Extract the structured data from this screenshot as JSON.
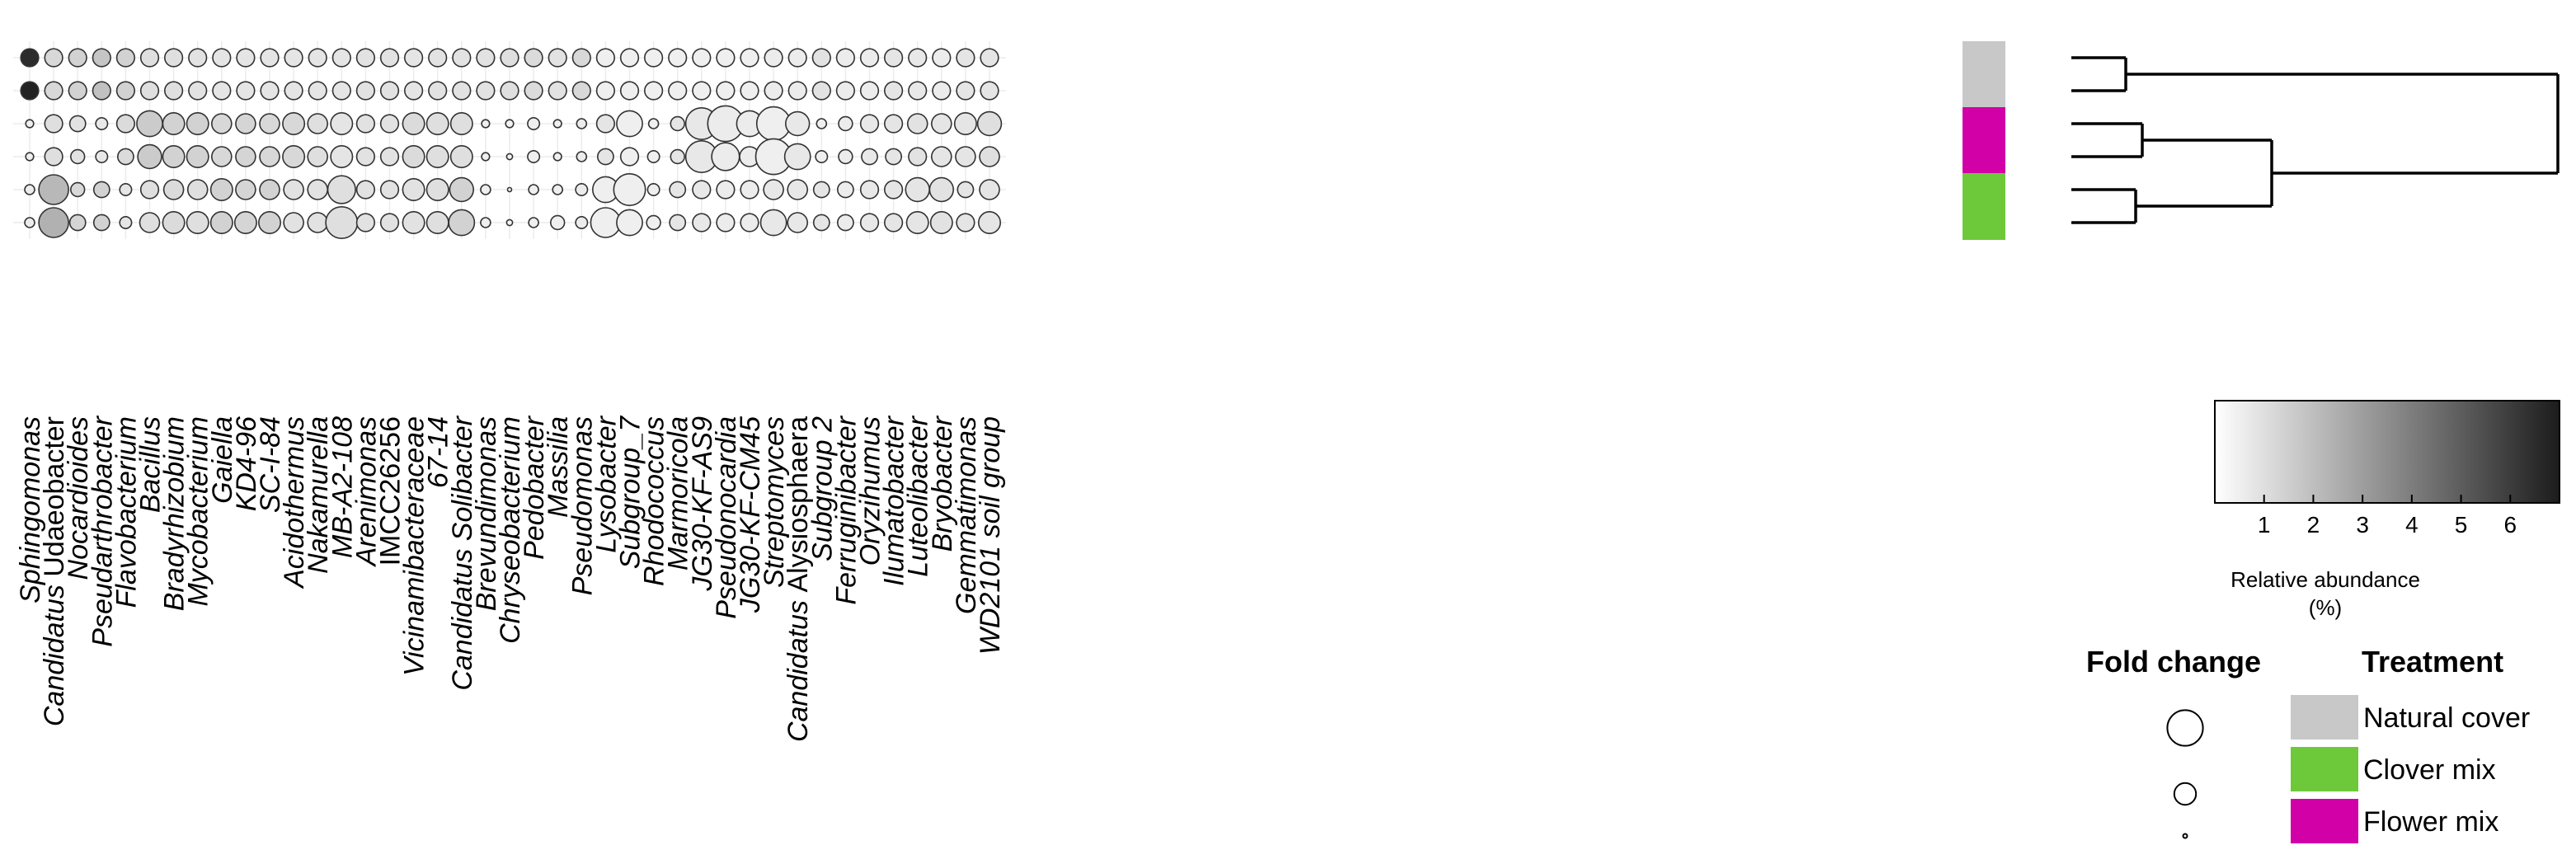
{
  "chart_data": {
    "type": "bubble-heatmap",
    "taxa": [
      {
        "name": "Sphingomonas",
        "italic": true
      },
      {
        "prefix": "Candidatus",
        "name": "Udaeobacter",
        "italic": false
      },
      {
        "name": "Nocardioides",
        "italic": true
      },
      {
        "name": "Pseudarthrobacter",
        "italic": true
      },
      {
        "name": "Flavobacterium",
        "italic": true
      },
      {
        "name": "Bacillus",
        "italic": true
      },
      {
        "name": "Bradyrhizobium",
        "italic": true
      },
      {
        "name": "Mycobacterium",
        "italic": true
      },
      {
        "name": "Gaiella",
        "italic": true
      },
      {
        "name": "KD4-96",
        "italic": true
      },
      {
        "name": "SC-I-84",
        "italic": true
      },
      {
        "name": "Acidothermus",
        "italic": true
      },
      {
        "name": "Nakamurella",
        "italic": true
      },
      {
        "name": "MB-A2-108",
        "italic": true
      },
      {
        "name": "Arenimonas",
        "italic": true
      },
      {
        "name": "IMCC26256",
        "italic": false
      },
      {
        "name": "Vicinamibacteraceae",
        "italic": true
      },
      {
        "name": "67-14",
        "italic": true
      },
      {
        "name": "Candidatus Solibacter",
        "italic": true
      },
      {
        "name": "Brevundimonas",
        "italic": true
      },
      {
        "name": "Chryseobacterium",
        "italic": true
      },
      {
        "name": "Pedobacter",
        "italic": true
      },
      {
        "name": "Massilia",
        "italic": true
      },
      {
        "name": "Pseudomonas",
        "italic": true
      },
      {
        "name": "Lysobacter",
        "italic": true
      },
      {
        "name": "Subgroup_7",
        "italic": true
      },
      {
        "name": "Rhodococcus",
        "italic": true
      },
      {
        "name": "Marmoricola",
        "italic": true
      },
      {
        "name": "JG30-KF-AS9",
        "italic": true
      },
      {
        "name": "Pseudonocardia",
        "italic": true
      },
      {
        "name": "JG30-KF-CM45",
        "italic": true
      },
      {
        "name": "Streptomyces",
        "italic": true
      },
      {
        "prefix": "Candidatus",
        "name": "Alysiosphaera",
        "italic": false
      },
      {
        "name": "Subgroup 2",
        "italic": true
      },
      {
        "name": "Ferruginibacter",
        "italic": true
      },
      {
        "name": "Oryzihumus",
        "italic": true
      },
      {
        "name": "Ilumatobacter",
        "italic": true
      },
      {
        "name": "Luteolibacter",
        "italic": true
      },
      {
        "name": "Bryobacter",
        "italic": true
      },
      {
        "name": "Gemmatimonas",
        "italic": true
      },
      {
        "name": "WD2101 soil group",
        "italic": true
      }
    ],
    "samples": [
      {
        "treatment": "Natural cover"
      },
      {
        "treatment": "Natural cover"
      },
      {
        "treatment": "Flower mix"
      },
      {
        "treatment": "Flower mix"
      },
      {
        "treatment": "Clover mix"
      },
      {
        "treatment": "Clover mix"
      }
    ],
    "fold_change": [
      [
        0.9,
        0.9,
        0.9,
        0.9,
        0.9,
        0.9,
        0.9,
        0.9,
        0.9,
        0.9,
        0.9,
        0.9,
        0.9,
        0.9,
        0.9,
        0.9,
        0.9,
        0.9,
        0.9,
        0.9,
        0.9,
        0.9,
        0.9,
        0.9,
        0.9,
        0.9,
        0.9,
        0.9,
        0.9,
        0.9,
        0.9,
        0.9,
        0.9,
        0.9,
        0.9,
        0.9,
        0.9,
        0.9,
        0.9,
        0.9,
        0.9
      ],
      [
        0.9,
        0.9,
        0.9,
        0.9,
        0.9,
        0.9,
        0.9,
        0.9,
        0.9,
        0.9,
        0.9,
        0.9,
        0.9,
        0.9,
        0.9,
        0.9,
        0.9,
        0.9,
        0.9,
        0.9,
        0.9,
        0.9,
        0.9,
        0.9,
        0.9,
        0.9,
        0.9,
        0.9,
        0.9,
        0.9,
        0.9,
        0.9,
        0.9,
        0.9,
        0.9,
        0.9,
        0.9,
        0.9,
        0.9,
        0.9,
        0.9
      ],
      [
        0.4,
        0.9,
        0.8,
        0.6,
        0.9,
        1.3,
        1.1,
        1.1,
        1.0,
        1.0,
        1.0,
        1.1,
        1.0,
        1.1,
        0.9,
        0.9,
        1.1,
        1.1,
        1.1,
        0.4,
        0.4,
        0.6,
        0.4,
        0.5,
        0.9,
        1.3,
        0.5,
        0.7,
        1.6,
        1.8,
        1.3,
        1.7,
        1.2,
        0.5,
        0.7,
        0.9,
        0.9,
        1.0,
        1.0,
        1.1,
        1.2
      ],
      [
        0.4,
        0.9,
        0.7,
        0.6,
        0.8,
        1.2,
        1.1,
        1.1,
        1.0,
        1.0,
        1.0,
        1.1,
        1.0,
        1.1,
        0.9,
        0.9,
        1.1,
        1.1,
        1.1,
        0.4,
        0.3,
        0.6,
        0.4,
        0.5,
        0.8,
        0.9,
        0.6,
        0.7,
        1.6,
        1.4,
        1.0,
        1.8,
        1.3,
        0.6,
        0.7,
        0.8,
        0.8,
        0.9,
        1.0,
        1.0,
        1.0
      ],
      [
        0.5,
        1.5,
        0.7,
        0.8,
        0.6,
        0.9,
        1.0,
        1.0,
        1.1,
        1.0,
        1.0,
        1.0,
        1.0,
        1.4,
        0.9,
        0.9,
        1.1,
        1.1,
        1.2,
        0.5,
        0.15,
        0.5,
        0.5,
        0.6,
        1.3,
        1.6,
        0.6,
        0.8,
        0.9,
        0.9,
        0.9,
        1.0,
        1.0,
        0.8,
        0.8,
        0.9,
        0.9,
        1.2,
        1.2,
        0.8,
        1.0
      ],
      [
        0.5,
        1.5,
        0.8,
        0.8,
        0.6,
        1.0,
        1.1,
        1.1,
        1.1,
        1.1,
        1.1,
        1.0,
        1.0,
        1.6,
        0.9,
        0.9,
        1.1,
        1.1,
        1.3,
        0.5,
        0.3,
        0.5,
        0.7,
        0.6,
        1.5,
        1.3,
        0.7,
        0.8,
        0.9,
        0.9,
        0.9,
        1.3,
        1.0,
        0.8,
        0.8,
        0.9,
        0.9,
        1.1,
        1.1,
        0.9,
        1.1
      ]
    ],
    "relative_abundance_pct": [
      [
        6.5,
        1.2,
        1.4,
        1.8,
        1.4,
        1.0,
        1.0,
        0.9,
        0.8,
        0.8,
        0.8,
        0.8,
        0.8,
        0.8,
        0.9,
        0.9,
        0.8,
        0.9,
        0.9,
        0.9,
        1.0,
        1.1,
        0.9,
        1.2,
        0.5,
        0.5,
        0.5,
        0.5,
        0.5,
        0.5,
        0.5,
        0.6,
        0.6,
        0.9,
        0.6,
        0.6,
        0.8,
        0.7,
        0.6,
        0.8,
        0.8
      ],
      [
        6.8,
        1.2,
        1.4,
        1.9,
        1.4,
        1.0,
        1.0,
        0.9,
        0.8,
        0.8,
        0.8,
        0.8,
        0.8,
        0.8,
        0.9,
        0.9,
        0.8,
        0.9,
        0.9,
        0.9,
        1.0,
        1.1,
        0.9,
        1.2,
        0.5,
        0.5,
        0.5,
        0.5,
        0.5,
        0.5,
        0.5,
        0.6,
        0.6,
        0.9,
        0.6,
        0.6,
        0.8,
        0.7,
        0.6,
        0.8,
        0.8
      ],
      [
        0.5,
        1.0,
        0.9,
        0.7,
        1.1,
        1.6,
        1.4,
        1.4,
        1.2,
        1.3,
        1.2,
        1.2,
        1.0,
        0.8,
        0.9,
        0.9,
        1.1,
        1.0,
        1.0,
        0.5,
        0.4,
        0.5,
        0.5,
        0.6,
        0.8,
        0.5,
        0.5,
        0.8,
        0.7,
        0.6,
        0.6,
        0.5,
        0.7,
        0.5,
        0.6,
        0.7,
        0.8,
        0.9,
        0.8,
        0.8,
        1.0
      ],
      [
        0.5,
        1.0,
        0.9,
        0.7,
        1.1,
        1.6,
        1.4,
        1.4,
        1.2,
        1.3,
        1.2,
        1.2,
        1.0,
        0.8,
        0.9,
        0.9,
        1.1,
        1.0,
        1.0,
        0.5,
        0.4,
        0.5,
        0.5,
        0.6,
        0.8,
        0.5,
        0.5,
        0.8,
        0.7,
        0.6,
        0.6,
        0.5,
        0.7,
        0.5,
        0.6,
        0.7,
        0.8,
        0.9,
        0.8,
        0.8,
        1.0
      ],
      [
        0.6,
        2.2,
        1.2,
        1.4,
        0.8,
        1.0,
        1.1,
        1.0,
        1.4,
        1.3,
        1.4,
        0.9,
        0.9,
        1.0,
        0.9,
        0.9,
        0.9,
        1.0,
        1.4,
        0.5,
        0.3,
        0.5,
        0.5,
        0.6,
        0.5,
        0.5,
        0.5,
        0.8,
        0.7,
        0.6,
        0.6,
        0.7,
        0.7,
        0.8,
        0.6,
        0.7,
        0.8,
        0.8,
        0.9,
        0.8,
        0.8
      ],
      [
        0.6,
        2.4,
        1.3,
        1.4,
        0.8,
        1.0,
        1.1,
        1.0,
        1.4,
        1.3,
        1.4,
        0.9,
        0.9,
        1.0,
        0.9,
        0.9,
        0.9,
        1.0,
        1.4,
        0.5,
        0.3,
        0.5,
        0.5,
        0.6,
        0.5,
        0.5,
        0.5,
        0.8,
        0.7,
        0.6,
        0.6,
        0.7,
        0.7,
        0.8,
        0.6,
        0.7,
        0.8,
        0.8,
        0.9,
        0.8,
        0.8
      ]
    ],
    "treatment_colors": {
      "Natural cover": "#c8c8c8",
      "Flower mix": "#d100a7",
      "Clover mix": "#6ec93a"
    },
    "dendrogram_merges": [
      [
        0,
        1
      ],
      [
        2,
        3
      ],
      [
        4,
        5
      ],
      [
        "flower",
        "clover"
      ],
      [
        "natural",
        "flower+clover"
      ]
    ],
    "colorbar": {
      "min": 0,
      "max": 7,
      "ticks": [
        1,
        2,
        3,
        4,
        5,
        6
      ],
      "title_line1": "Relative abundance",
      "title_line2": "(%)",
      "color_low": "#ffffff",
      "color_high": "#1c1c1c"
    },
    "fold_change_legend": {
      "title": "Fold change",
      "sizes": [
        1.8,
        1.1,
        0.2
      ]
    },
    "treatment_legend": {
      "title": "Treatment",
      "items": [
        {
          "label": "Natural cover",
          "color": "#c8c8c8"
        },
        {
          "label": "Clover mix",
          "color": "#6ec93a"
        },
        {
          "label": "Flower mix",
          "color": "#d100a7"
        }
      ]
    }
  }
}
